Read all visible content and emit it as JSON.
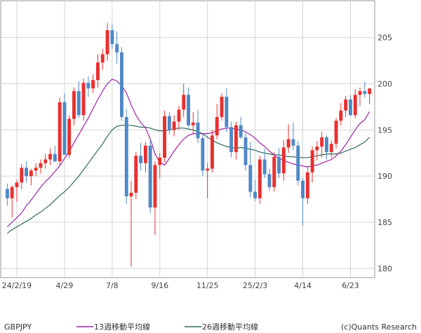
{
  "chart_data": {
    "type": "candlestick",
    "symbol": "GBPJPY",
    "credit": "(c)Quants Research",
    "legend_position": "bottom",
    "grid": true,
    "ylim": [
      179,
      209
    ],
    "y_ticks": [
      180,
      185,
      190,
      195,
      200,
      205
    ],
    "x_ticks": [
      {
        "label": "24/2/19",
        "week": 2
      },
      {
        "label": "4/29",
        "week": 12
      },
      {
        "label": "7/8",
        "week": 22
      },
      {
        "label": "9/16",
        "week": 32
      },
      {
        "label": "11/25",
        "week": 42
      },
      {
        "label": "25/2/3",
        "week": 52
      },
      {
        "label": "4/14",
        "week": 62
      },
      {
        "label": "6/23",
        "week": 72
      }
    ],
    "colors": {
      "up": "#e8302f",
      "down": "#4f88c6",
      "ma13": "#a020a8",
      "ma26": "#2e6b5e",
      "grid": "#d4d4d4",
      "axis": "#999999"
    },
    "candles": [
      [
        188.6,
        189.2,
        186.8,
        187.6
      ],
      [
        187.6,
        189.0,
        185.5,
        188.8
      ],
      [
        188.8,
        189.6,
        187.2,
        189.3
      ],
      [
        189.3,
        191.3,
        188.6,
        190.9
      ],
      [
        190.9,
        191.6,
        189.3,
        190.0
      ],
      [
        190.0,
        190.8,
        189.0,
        190.6
      ],
      [
        190.6,
        191.4,
        190.0,
        190.9
      ],
      [
        190.9,
        191.8,
        190.3,
        191.4
      ],
      [
        191.4,
        192.4,
        190.8,
        191.8
      ],
      [
        191.8,
        193.0,
        191.2,
        192.4
      ],
      [
        192.4,
        193.3,
        191.5,
        191.6
      ],
      [
        191.6,
        198.5,
        191.2,
        198.0
      ],
      [
        198.0,
        199.0,
        192.5,
        192.3
      ],
      [
        192.3,
        196.6,
        192.0,
        196.2
      ],
      [
        196.2,
        199.6,
        195.5,
        199.2
      ],
      [
        199.2,
        200.3,
        196.3,
        196.6
      ],
      [
        196.6,
        200.6,
        196.0,
        200.1
      ],
      [
        200.1,
        200.8,
        198.6,
        199.5
      ],
      [
        199.5,
        201.0,
        199.0,
        200.4
      ],
      [
        200.4,
        203.2,
        199.6,
        202.3
      ],
      [
        202.3,
        203.8,
        201.5,
        203.2
      ],
      [
        203.2,
        206.6,
        202.5,
        205.8
      ],
      [
        205.8,
        206.4,
        203.8,
        204.3
      ],
      [
        204.3,
        205.7,
        202.2,
        203.4
      ],
      [
        203.4,
        204.0,
        196.0,
        196.4
      ],
      [
        196.4,
        197.3,
        187.0,
        187.8
      ],
      [
        187.8,
        189.5,
        180.2,
        188.2
      ],
      [
        188.2,
        192.6,
        187.5,
        192.2
      ],
      [
        192.2,
        193.6,
        190.6,
        191.4
      ],
      [
        191.4,
        193.7,
        190.4,
        193.3
      ],
      [
        193.3,
        194.0,
        186.0,
        186.6
      ],
      [
        186.6,
        191.6,
        183.6,
        191.2
      ],
      [
        191.2,
        192.5,
        189.8,
        192.0
      ],
      [
        192.0,
        197.1,
        191.5,
        196.5
      ],
      [
        196.5,
        196.9,
        194.5,
        195.0
      ],
      [
        195.0,
        196.6,
        194.3,
        195.9
      ],
      [
        195.9,
        197.6,
        195.0,
        197.2
      ],
      [
        197.2,
        200.0,
        196.4,
        198.8
      ],
      [
        198.8,
        199.6,
        195.3,
        195.5
      ],
      [
        195.5,
        196.9,
        194.5,
        195.8
      ],
      [
        195.8,
        197.2,
        193.6,
        194.1
      ],
      [
        194.1,
        194.6,
        190.0,
        190.6
      ],
      [
        190.6,
        191.4,
        187.6,
        190.8
      ],
      [
        190.8,
        195.0,
        190.4,
        194.4
      ],
      [
        194.4,
        197.8,
        194.0,
        196.4
      ],
      [
        196.4,
        199.0,
        196.0,
        198.6
      ],
      [
        198.6,
        199.5,
        194.8,
        195.3
      ],
      [
        195.3,
        195.9,
        192.0,
        192.6
      ],
      [
        192.6,
        195.9,
        191.8,
        195.5
      ],
      [
        195.5,
        196.4,
        194.0,
        194.2
      ],
      [
        194.2,
        194.8,
        190.6,
        191.2
      ],
      [
        191.2,
        193.7,
        187.7,
        188.3
      ],
      [
        188.3,
        189.6,
        187.3,
        187.6
      ],
      [
        187.6,
        192.2,
        187.0,
        191.8
      ],
      [
        191.8,
        193.0,
        189.8,
        190.2
      ],
      [
        190.2,
        190.8,
        188.4,
        188.8
      ],
      [
        188.8,
        192.6,
        188.3,
        192.1
      ],
      [
        192.1,
        193.0,
        189.8,
        190.3
      ],
      [
        190.3,
        193.9,
        189.5,
        193.1
      ],
      [
        193.1,
        195.6,
        192.5,
        194.0
      ],
      [
        194.0,
        195.8,
        192.8,
        193.3
      ],
      [
        193.3,
        193.8,
        189.0,
        189.5
      ],
      [
        189.5,
        189.8,
        184.6,
        187.6
      ],
      [
        187.6,
        191.0,
        187.0,
        190.4
      ],
      [
        190.4,
        193.2,
        189.3,
        192.8
      ],
      [
        192.8,
        193.8,
        191.7,
        193.2
      ],
      [
        193.2,
        194.8,
        192.0,
        194.2
      ],
      [
        194.2,
        194.4,
        191.8,
        192.6
      ],
      [
        192.6,
        193.9,
        192.0,
        193.5
      ],
      [
        193.5,
        196.3,
        193.0,
        196.0
      ],
      [
        196.0,
        197.9,
        195.5,
        197.1
      ],
      [
        197.1,
        198.7,
        196.4,
        198.3
      ],
      [
        198.3,
        198.8,
        196.5,
        196.6
      ],
      [
        196.6,
        199.4,
        196.3,
        198.8
      ],
      [
        198.8,
        199.6,
        197.6,
        199.2
      ],
      [
        199.2,
        200.2,
        198.5,
        198.9
      ],
      [
        198.9,
        199.5,
        197.8,
        199.5
      ]
    ],
    "series": [
      {
        "name": "13週移動平均線",
        "values": [
          184.5,
          185.0,
          185.5,
          186.0,
          186.8,
          187.4,
          188.1,
          188.8,
          189.4,
          189.9,
          190.5,
          191.1,
          191.9,
          192.7,
          193.6,
          194.5,
          195.4,
          196.3,
          197.3,
          198.3,
          199.2,
          200.0,
          200.5,
          200.3,
          199.8,
          199.0,
          197.7,
          196.6,
          195.8,
          195.2,
          194.0,
          192.4,
          191.5,
          191.2,
          191.9,
          192.7,
          193.4,
          194.0,
          194.4,
          194.6,
          194.6,
          194.6,
          194.6,
          194.7,
          194.9,
          195.1,
          195.2,
          195.2,
          195.1,
          195.0,
          194.8,
          194.5,
          194.1,
          193.6,
          193.2,
          192.7,
          192.3,
          191.9,
          191.7,
          191.5,
          191.3,
          191.2,
          191.1,
          191.0,
          191.1,
          191.2,
          191.4,
          191.6,
          191.8,
          192.2,
          192.7,
          193.4,
          194.2,
          195.0,
          195.7,
          196.1,
          197.0
        ]
      },
      {
        "name": "26週移動平均線",
        "values": [
          183.8,
          184.2,
          184.5,
          184.8,
          185.1,
          185.4,
          185.8,
          186.1,
          186.5,
          186.9,
          187.4,
          187.9,
          188.3,
          188.8,
          189.4,
          190.0,
          190.7,
          191.4,
          192.1,
          192.8,
          193.5,
          194.3,
          195.0,
          195.4,
          195.5,
          195.5,
          195.5,
          195.4,
          195.3,
          195.3,
          195.2,
          195.0,
          194.9,
          194.9,
          195.0,
          195.1,
          195.2,
          195.2,
          195.1,
          195.0,
          194.8,
          194.6,
          194.2,
          193.9,
          193.6,
          193.4,
          193.2,
          193.1,
          193.0,
          193.1,
          193.0,
          192.9,
          192.8,
          192.6,
          192.5,
          192.4,
          192.3,
          192.3,
          192.2,
          192.1,
          192.1,
          192.0,
          192.0,
          192.0,
          192.1,
          192.2,
          192.3,
          192.4,
          192.4,
          192.4,
          192.5,
          192.7,
          192.9,
          193.1,
          193.4,
          193.7,
          194.2
        ]
      }
    ]
  }
}
